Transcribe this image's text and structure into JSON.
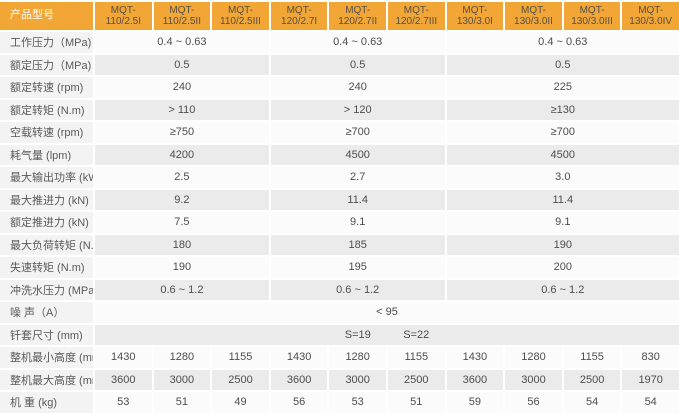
{
  "table": {
    "corner_label": "产品型号",
    "models": [
      {
        "l1": "MQT-",
        "l2": "110/2.5I"
      },
      {
        "l1": "MQT-",
        "l2": "110/2.5II"
      },
      {
        "l1": "MQT-",
        "l2": "110/2.5III"
      },
      {
        "l1": "MQT-",
        "l2": "120/2.7I"
      },
      {
        "l1": "MQT-",
        "l2": "120/2.7II"
      },
      {
        "l1": "MQT-",
        "l2": "120/2.7III"
      },
      {
        "l1": "MQT-",
        "l2": "130/3.0I"
      },
      {
        "l1": "MQT-",
        "l2": "130/3.0II"
      },
      {
        "l1": "MQT-",
        "l2": "130/3.0III"
      },
      {
        "l1": "MQT-",
        "l2": "130/3.0IV"
      }
    ],
    "grouped_rows": [
      {
        "label": "工作压力（MPa)",
        "values": [
          "0.4 ~ 0.63",
          "0.4 ~ 0.63",
          "0.4 ~ 0.63"
        ]
      },
      {
        "label": "额定压力（MPa)",
        "values": [
          "0.5",
          "0.5",
          "0.5"
        ]
      },
      {
        "label": "额定转速 (rpm)",
        "values": [
          "240",
          "240",
          "225"
        ]
      },
      {
        "label": "额定转矩 (N.m)",
        "values": [
          "> 110",
          "> 120",
          "≥130"
        ]
      },
      {
        "label": "空载转速 (rpm)",
        "values": [
          "≥750",
          "≥700",
          "≥700"
        ]
      },
      {
        "label": "耗气量 (lpm)",
        "values": [
          "4200",
          "4500",
          "4500"
        ]
      },
      {
        "label": "最大输出功率 (kW)",
        "values": [
          "2.5",
          "2.7",
          "3.0"
        ]
      },
      {
        "label": "最大推进力 (kN)",
        "values": [
          "9.2",
          "11.4",
          "11.4"
        ]
      },
      {
        "label": "额定推进力 (kN)",
        "values": [
          "7.5",
          "9.1",
          "9.1"
        ]
      },
      {
        "label": "最大负荷转矩 (N.m)",
        "values": [
          "180",
          "185",
          "190"
        ]
      },
      {
        "label": "失速转矩 (N.m)",
        "values": [
          "190",
          "195",
          "200"
        ]
      },
      {
        "label": "冲洗水压力 (MPa)",
        "values": [
          "0.6 ~ 1.2",
          "0.6 ~ 1.2",
          "0.6 ~ 1.2"
        ]
      }
    ],
    "noise_row": {
      "label": "噪 声（A）",
      "value": "< 95"
    },
    "sleeve_row": {
      "label": "钎套尺寸 (mm)",
      "col5": "S=19",
      "col6": "S=22"
    },
    "per_column_rows": [
      {
        "label": "整机最小高度 (mm)",
        "values": [
          "1430",
          "1280",
          "1155",
          "1430",
          "1280",
          "1155",
          "1430",
          "1280",
          "1155",
          "830"
        ]
      },
      {
        "label": "整机最大高度 (mm)",
        "values": [
          "3600",
          "3000",
          "2500",
          "3600",
          "3000",
          "2500",
          "3600",
          "3000",
          "2500",
          "1970"
        ]
      },
      {
        "label": "机 重 (kg)",
        "values": [
          "53",
          "51",
          "49",
          "56",
          "53",
          "51",
          "59",
          "56",
          "54",
          "54"
        ]
      }
    ],
    "colors": {
      "header_bg": "#F2A636",
      "header_text": "#564F44",
      "corner_text": "#FFFFFF",
      "row_gray": "#EBEBEB",
      "row_white": "#FBFBFB",
      "label_bg": "#F3F3F3"
    }
  }
}
